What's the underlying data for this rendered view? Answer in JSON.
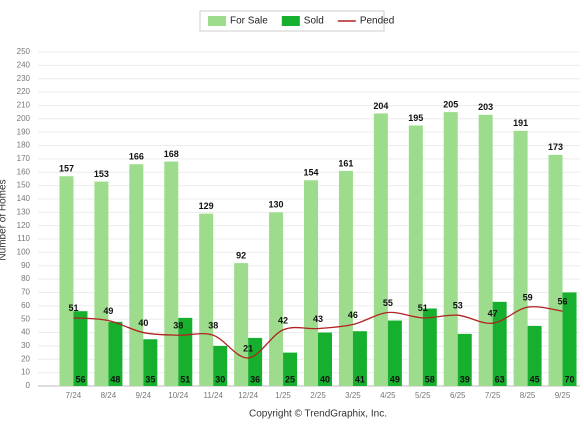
{
  "chart_data": {
    "type": "bar-line",
    "y_label": "Number of Homes",
    "footer": "Copyright © TrendGraphix, Inc.",
    "categories": [
      "7/24",
      "8/24",
      "9/24",
      "10/24",
      "11/24",
      "12/24",
      "1/25",
      "2/25",
      "3/25",
      "4/25",
      "5/25",
      "6/25",
      "7/25",
      "8/25",
      "9/25"
    ],
    "series": [
      {
        "name": "For Sale",
        "type": "bar",
        "color": "#9ddc8c",
        "values": [
          157,
          153,
          166,
          168,
          129,
          92,
          130,
          154,
          161,
          204,
          195,
          205,
          203,
          191,
          173
        ]
      },
      {
        "name": "Sold",
        "type": "bar",
        "color": "#16b02e",
        "values": [
          56,
          48,
          35,
          51,
          30,
          36,
          25,
          40,
          41,
          49,
          58,
          39,
          63,
          45,
          70
        ]
      },
      {
        "name": "Pended",
        "type": "line",
        "color": "#b22222",
        "values": [
          51,
          49,
          40,
          38,
          38,
          21,
          42,
          43,
          46,
          55,
          51,
          53,
          47,
          59,
          56
        ]
      }
    ],
    "ylim": [
      0,
      250
    ],
    "yticks": [
      0,
      10,
      20,
      30,
      40,
      50,
      60,
      70,
      80,
      90,
      100,
      110,
      120,
      130,
      140,
      150,
      160,
      170,
      180,
      190,
      200,
      210,
      220,
      230,
      240,
      250
    ],
    "grid": true,
    "legend": "top"
  }
}
